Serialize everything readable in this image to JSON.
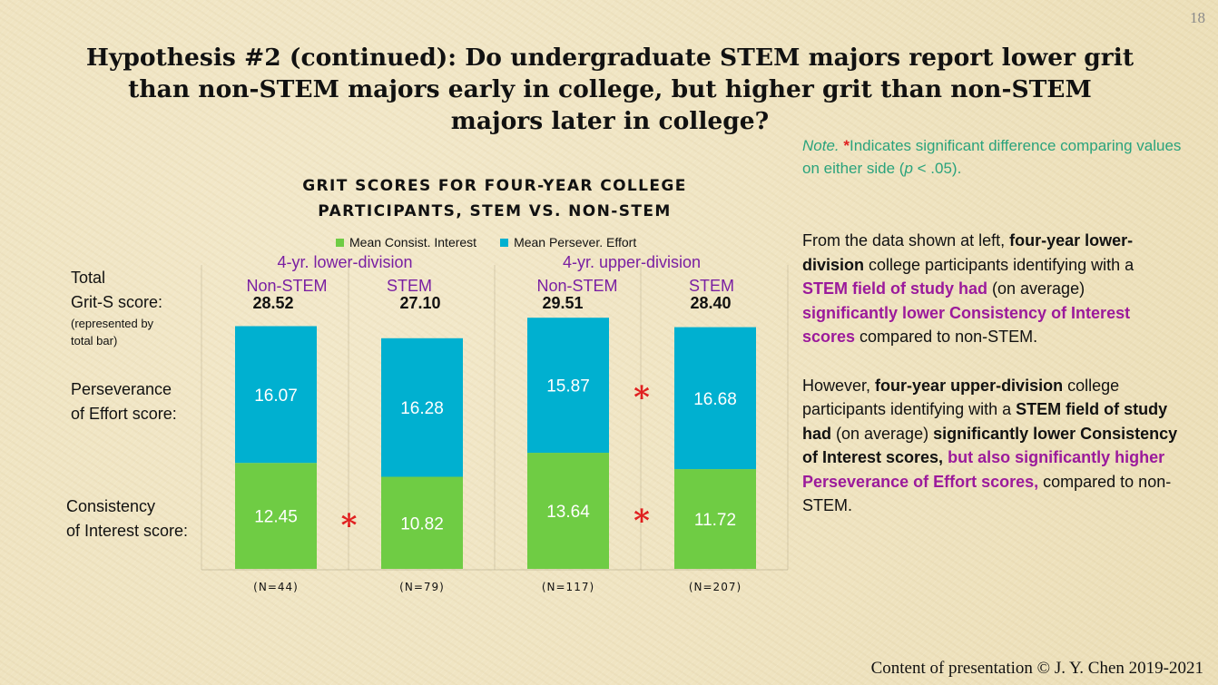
{
  "slide_number": "18",
  "title": "Hypothesis #2 (continued): Do undergraduate STEM majors report lower grit than non-STEM majors early in college, but higher grit than non-STEM majors later in college?",
  "note": {
    "prefix": "Note.",
    "star": "*",
    "text_a": "Indicates significant difference comparing values on either side (",
    "p": "p",
    "text_b": " < .05)."
  },
  "row_labels": {
    "total_line1": "Total",
    "total_line2": "Grit-S score:",
    "total_sub1": "(represented by",
    "total_sub2": "total bar)",
    "persev_line1": "Perseverance",
    "persev_line2": "of Effort score:",
    "consist_line1": "Consistency",
    "consist_line2": "of Interest score:"
  },
  "summary": {
    "p1": [
      {
        "t": "From the data shown at left, ",
        "s": "n"
      },
      {
        "t": "four-year lower-division",
        "s": "b"
      },
      {
        "t": " college participants identifying with a ",
        "s": "n"
      },
      {
        "t": "STEM field of study had",
        "s": "p"
      },
      {
        "t": " (on average) ",
        "s": "n"
      },
      {
        "t": "significantly lower Consistency of Interest scores",
        "s": "p"
      },
      {
        "t": " compared to non-STEM.",
        "s": "n"
      }
    ],
    "p2": [
      {
        "t": "However, ",
        "s": "n"
      },
      {
        "t": "four-year upper-division",
        "s": "b"
      },
      {
        "t": " college participants identifying with a ",
        "s": "n"
      },
      {
        "t": "STEM field of study had",
        "s": "b"
      },
      {
        "t": " (on average) ",
        "s": "n"
      },
      {
        "t": "significantly lower Consistency of Interest scores,",
        "s": "b"
      },
      {
        "t": " ",
        "s": "n"
      },
      {
        "t": "but also significantly higher Perseverance of Effort scores,",
        "s": "p"
      },
      {
        "t": " compared to non-STEM.",
        "s": "n"
      }
    ]
  },
  "copyright": "Content of presentation © J. Y. Chen 2019-2021",
  "chart_data": {
    "type": "bar",
    "stacked": true,
    "title": "GRIT SCORES FOR FOUR-YEAR COLLEGE PARTICIPANTS, STEM VS. NON-STEM",
    "groups": [
      "4-yr. lower-division",
      "4-yr. upper-division"
    ],
    "categories": [
      "Non-STEM",
      "STEM",
      "Non-STEM",
      "STEM"
    ],
    "totals": [
      "28.52",
      "27.10",
      "29.51",
      "28.40"
    ],
    "n_labels": [
      "(N=44)",
      "(N=79)",
      "(N=117)",
      "(N=207)"
    ],
    "series": [
      {
        "name": "Mean Consist. Interest",
        "color": "#6fcc44",
        "values": [
          12.45,
          10.82,
          13.64,
          11.72
        ]
      },
      {
        "name": "Mean Persever. Effort",
        "color": "#00b0d0",
        "values": [
          16.07,
          16.28,
          15.87,
          16.68
        ]
      }
    ],
    "significance": [
      {
        "between": [
          0,
          1
        ],
        "series": "Mean Consist. Interest",
        "marker": "*"
      },
      {
        "between": [
          2,
          3
        ],
        "series": "Mean Consist. Interest",
        "marker": "*"
      },
      {
        "between": [
          2,
          3
        ],
        "series": "Mean Persever. Effort",
        "marker": "*"
      }
    ],
    "ylim": [
      0,
      31
    ],
    "grid": false,
    "legend": "top",
    "star_color": "#e02020",
    "label_color": "#ffffff"
  }
}
